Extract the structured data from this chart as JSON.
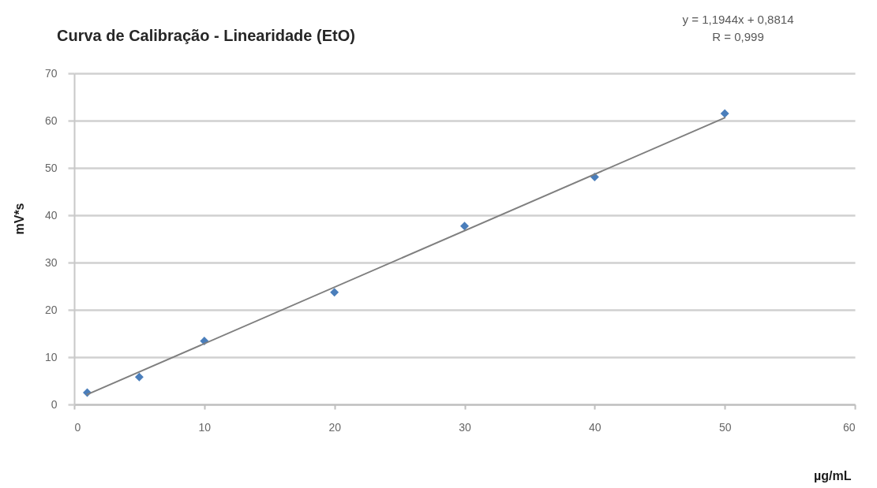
{
  "chart_data": {
    "type": "scatter",
    "title": "Curva de Calibração - Linearidade (EtO)",
    "xlabel": "µg/mL",
    "ylabel": "mV*s",
    "annotations": [
      "y = 1,1944x  + 0,8814",
      "R = 0,999"
    ],
    "series": [
      {
        "color": "#4a7ebb",
        "x": [
          1,
          5,
          10,
          20,
          30,
          40,
          50
        ],
        "values": [
          2.5,
          5.8,
          13.4,
          23.7,
          37.7,
          48.1,
          61.5
        ]
      },
      {
        "type": "line",
        "color": "#7f7f7f",
        "marker": "none",
        "x": [
          1,
          50
        ],
        "values": [
          2.1,
          60.6
        ]
      }
    ],
    "xlim": [
      0,
      60
    ],
    "xticks": [
      0,
      10,
      20,
      30,
      40,
      50,
      60
    ],
    "ylim": [
      0,
      70
    ],
    "yticks": [
      0,
      10,
      20,
      30,
      40,
      50,
      60,
      70
    ],
    "grid": "y",
    "marker": "diamond"
  }
}
